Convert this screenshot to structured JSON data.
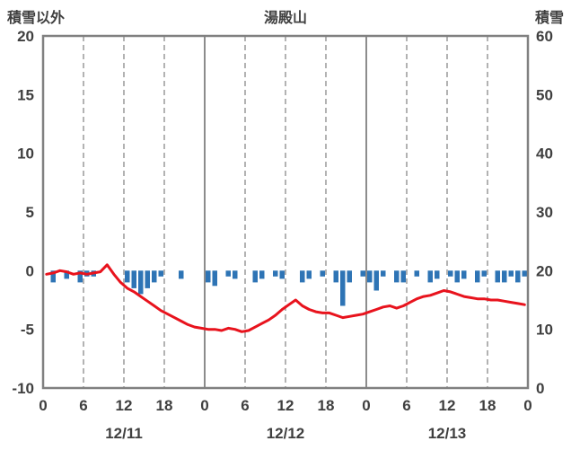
{
  "header": {
    "left_axis_title": "積雪以外",
    "title": "湯殿山",
    "right_axis_title": "積雪"
  },
  "chart_data": {
    "type": "mixed",
    "title": "湯殿山",
    "x": {
      "unit": "hour",
      "range": [
        0,
        72
      ],
      "tick_interval": 6,
      "tick_labels": [
        "0",
        "6",
        "12",
        "18",
        "0",
        "6",
        "12",
        "18",
        "0",
        "6",
        "12",
        "18",
        "0"
      ],
      "day_labels": [
        "12/11",
        "12/12",
        "12/13"
      ],
      "day_label_hours": [
        12,
        36,
        60
      ]
    },
    "left_axis": {
      "title": "積雪以外",
      "min": -10,
      "max": 20,
      "ticks": [
        20,
        15,
        10,
        5,
        0,
        -5,
        -10
      ]
    },
    "right_axis": {
      "title": "積雪",
      "min": 0,
      "max": 60,
      "ticks": [
        60,
        50,
        40,
        30,
        20,
        10,
        0
      ]
    },
    "grid": {
      "vertical_dashed_hours": [
        6,
        12,
        18,
        30,
        36,
        42,
        54,
        60,
        66
      ],
      "vertical_solid_hours": [
        24,
        48
      ]
    },
    "colors": {
      "frame": "#808080",
      "grid_dashed": "#a0a0a0",
      "grid_solid": "#808080",
      "text": "#3f3f3f",
      "line": "#e8131d",
      "bar": "#2e74b5"
    },
    "series": [
      {
        "name": "red_line",
        "type": "line",
        "axis": "left",
        "color": "#e8131d",
        "values": [
          -0.3,
          -0.2,
          0,
          -0.1,
          -0.3,
          -0.2,
          -0.3,
          -0.2,
          -0.1,
          0.5,
          -0.3,
          -1,
          -1.5,
          -1.8,
          -2.2,
          -2.6,
          -3,
          -3.4,
          -3.7,
          -4,
          -4.3,
          -4.6,
          -4.8,
          -4.9,
          -5,
          -5,
          -5.1,
          -4.9,
          -5,
          -5.2,
          -5.1,
          -4.8,
          -4.5,
          -4.2,
          -3.8,
          -3.3,
          -2.9,
          -2.5,
          -3,
          -3.3,
          -3.5,
          -3.6,
          -3.6,
          -3.8,
          -4,
          -3.9,
          -3.8,
          -3.7,
          -3.5,
          -3.3,
          -3.1,
          -3,
          -3.2,
          -3,
          -2.7,
          -2.4,
          -2.2,
          -2.1,
          -1.9,
          -1.7,
          -1.8,
          -2,
          -2.2,
          -2.3,
          -2.4,
          -2.4,
          -2.5,
          -2.5,
          -2.6,
          -2.7,
          -2.8,
          -2.9
        ]
      },
      {
        "name": "blue_bars",
        "type": "bar",
        "axis": "left",
        "direction": "down_from_zero",
        "color": "#2e74b5",
        "values": [
          0,
          1,
          0,
          0.7,
          0,
          1,
          0.5,
          0.5,
          0,
          0,
          0,
          0,
          1,
          1.5,
          2,
          1.5,
          1,
          0.5,
          0,
          0,
          0.7,
          0,
          0,
          0,
          1,
          1.3,
          0,
          0.5,
          0.7,
          0,
          0,
          1,
          0.7,
          0,
          0.5,
          0.7,
          0,
          0,
          1,
          0.7,
          0,
          0.5,
          0,
          1,
          3,
          1,
          0,
          0.5,
          1,
          1.7,
          0.5,
          0,
          1,
          1,
          0,
          0.5,
          0,
          1,
          0.7,
          0,
          0.5,
          1,
          0.7,
          0,
          1,
          0.5,
          0,
          1,
          1,
          0.5,
          1,
          0.5
        ]
      }
    ]
  }
}
